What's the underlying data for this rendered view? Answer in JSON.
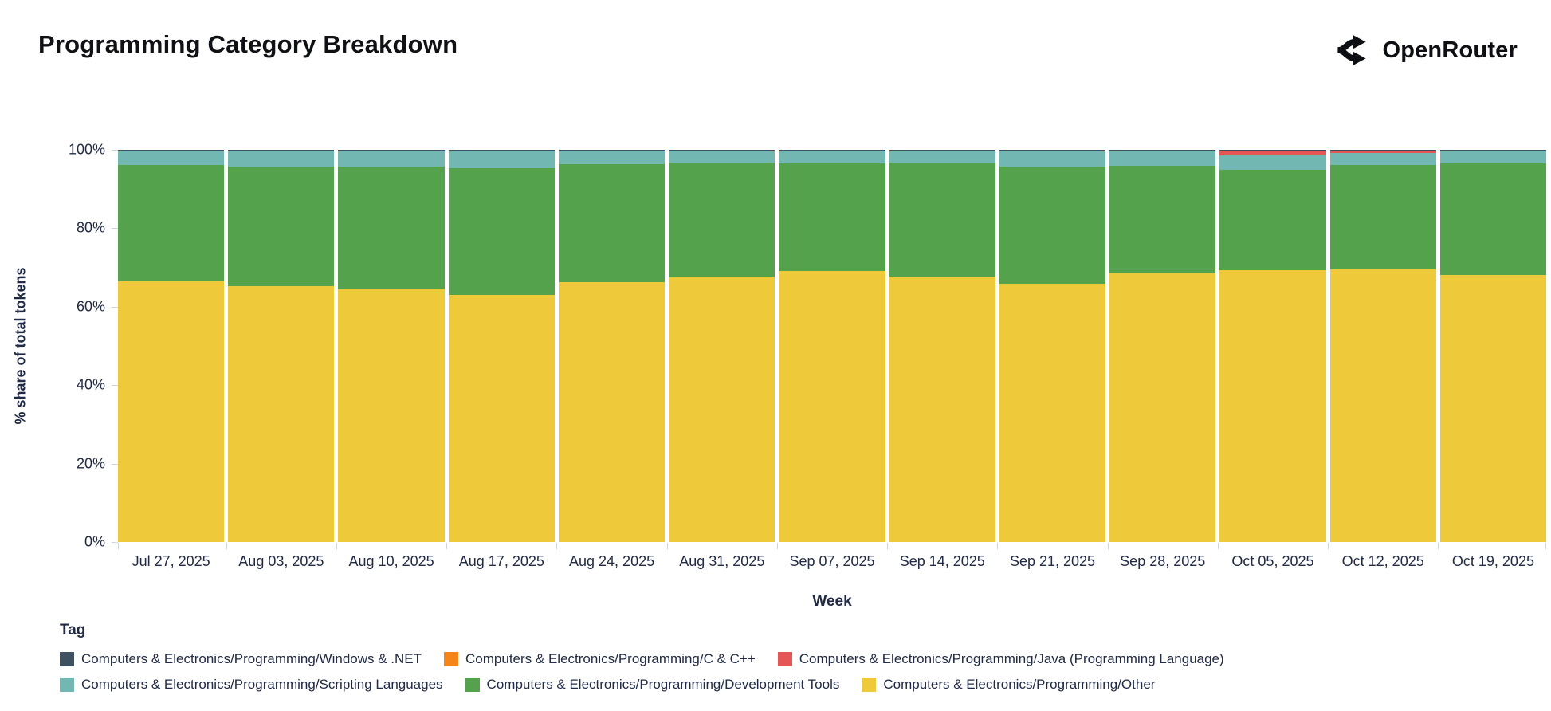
{
  "header": {
    "title": "Programming Category Breakdown",
    "brand": "OpenRouter"
  },
  "chart_data": {
    "type": "bar",
    "variant": "stacked-normalized",
    "title": "Programming Category Breakdown",
    "xlabel": "Week",
    "ylabel": "% share of total tokens",
    "ylim": [
      0,
      100
    ],
    "y_ticks": [
      {
        "value": 0,
        "label": "0%"
      },
      {
        "value": 20,
        "label": "20%"
      },
      {
        "value": 40,
        "label": "40%"
      },
      {
        "value": 60,
        "label": "60%"
      },
      {
        "value": 80,
        "label": "80%"
      },
      {
        "value": 100,
        "label": "100%"
      }
    ],
    "grid": false,
    "legend_position": "bottom",
    "categories": [
      "Jul 27, 2025",
      "Aug 03, 2025",
      "Aug 10, 2025",
      "Aug 17, 2025",
      "Aug 24, 2025",
      "Aug 31, 2025",
      "Sep 07, 2025",
      "Sep 14, 2025",
      "Sep 21, 2025",
      "Sep 28, 2025",
      "Oct 05, 2025",
      "Oct 12, 2025",
      "Oct 19, 2025"
    ],
    "series": [
      {
        "name": "Computers & Electronics/Programming/Other",
        "color": "#eeca3b",
        "pattern": "solid",
        "values": [
          66.5,
          65.2,
          64.5,
          63.1,
          66.2,
          67.5,
          69.1,
          67.6,
          65.8,
          68.5,
          69.3,
          69.5,
          68.0
        ]
      },
      {
        "name": "Computers & Electronics/Programming/Development Tools",
        "color": "#54a24b",
        "pattern": "solid",
        "values": [
          29.7,
          30.5,
          31.2,
          32.2,
          30.2,
          29.2,
          27.4,
          29.1,
          29.9,
          27.4,
          25.6,
          26.7,
          28.5
        ]
      },
      {
        "name": "Computers & Electronics/Programming/Scripting Languages",
        "color": "#72b7b2",
        "pattern": "solid",
        "values": [
          3.4,
          3.8,
          3.8,
          4.2,
          3.2,
          2.9,
          3.1,
          2.9,
          3.8,
          3.6,
          3.7,
          2.9,
          3.1
        ]
      },
      {
        "name": "Computers & Electronics/Programming/Java (Programming Language)",
        "color": "#e45756",
        "pattern": "solid",
        "values": [
          0,
          0,
          0,
          0,
          0,
          0,
          0,
          0,
          0,
          0,
          1.3,
          0.8,
          0
        ]
      },
      {
        "name": "Computers & Electronics/Programming/C & C++",
        "color": "#f58518",
        "pattern": "solid",
        "values": [
          0.3,
          0.4,
          0.4,
          0.4,
          0.3,
          0.3,
          0.3,
          0.3,
          0.4,
          0.4,
          0,
          0,
          0.3
        ]
      },
      {
        "name": "Computers & Electronics/Programming/Windows & .NET",
        "color": "#3d5160",
        "pattern": "dots",
        "values": [
          0.1,
          0.1,
          0.1,
          0.1,
          0.1,
          0.1,
          0.1,
          0.1,
          0.1,
          0.1,
          0.1,
          0.1,
          0.1
        ]
      }
    ]
  },
  "legend": {
    "title": "Tag",
    "items": [
      {
        "label": "Computers & Electronics/Programming/Windows & .NET",
        "color": "#3d5160",
        "pattern": "dots"
      },
      {
        "label": "Computers & Electronics/Programming/C & C++",
        "color": "#f58518",
        "pattern": "solid"
      },
      {
        "label": "Computers & Electronics/Programming/Java (Programming Language)",
        "color": "#e45756",
        "pattern": "solid"
      },
      {
        "label": "Computers & Electronics/Programming/Scripting Languages",
        "color": "#72b7b2",
        "pattern": "solid"
      },
      {
        "label": "Computers & Electronics/Programming/Development Tools",
        "color": "#54a24b",
        "pattern": "solid"
      },
      {
        "label": "Computers & Electronics/Programming/Other",
        "color": "#eeca3b",
        "pattern": "solid"
      }
    ]
  }
}
